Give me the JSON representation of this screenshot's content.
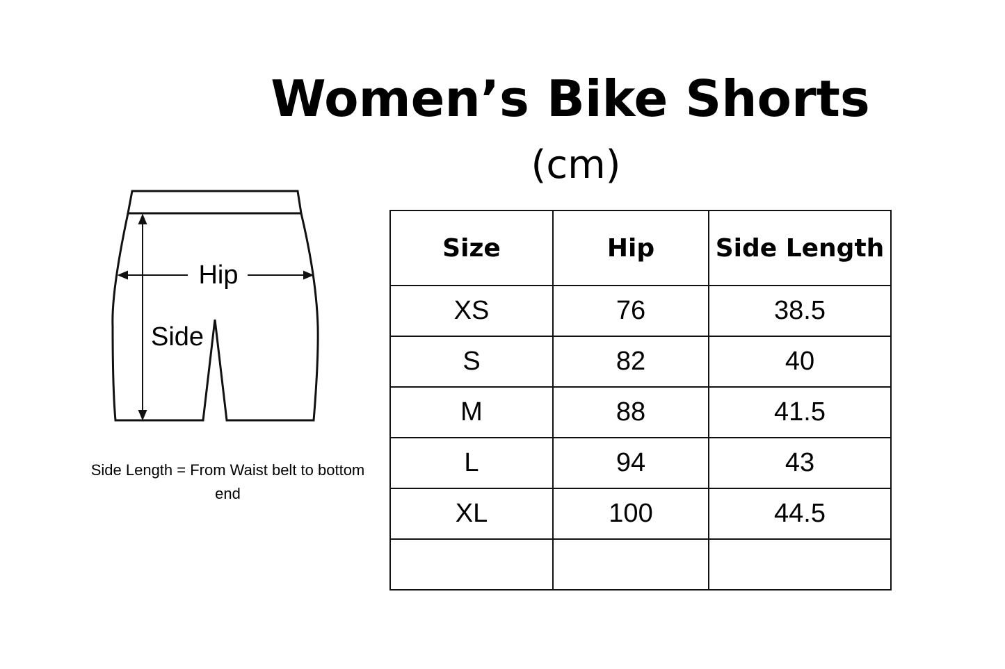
{
  "title": "Women’s Bike Shorts",
  "unit": "(cm)",
  "diagram": {
    "hip_label": "Hip",
    "side_label": "Side"
  },
  "note": "Side Length = From Waist belt to bottom end",
  "table": {
    "headers": [
      "Size",
      "Hip",
      "Side Length"
    ],
    "rows": [
      [
        "XS",
        "76",
        "38.5"
      ],
      [
        "S",
        "82",
        "40"
      ],
      [
        "M",
        "88",
        "41.5"
      ],
      [
        "L",
        "94",
        "43"
      ],
      [
        "XL",
        "100",
        "44.5"
      ],
      [
        "",
        "",
        ""
      ]
    ]
  }
}
